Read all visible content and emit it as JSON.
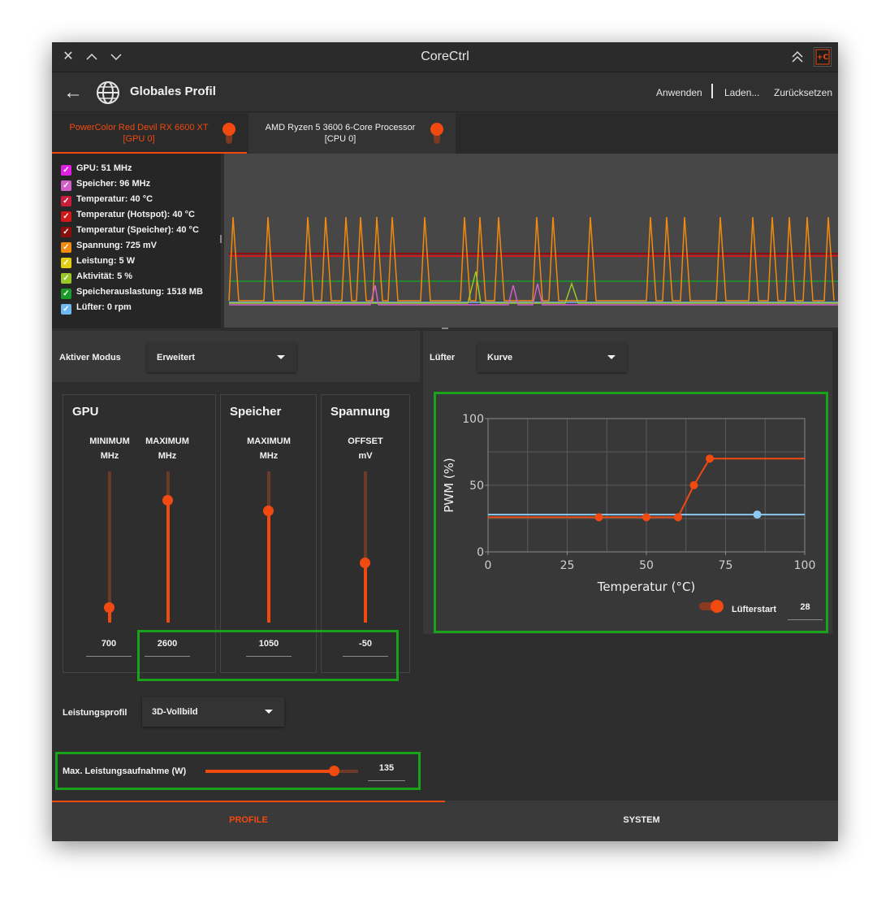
{
  "window": {
    "title": "CoreCtrl",
    "icon_text": "+C"
  },
  "header": {
    "title": "Globales Profil",
    "actions": {
      "apply": "Anwenden",
      "load": "Laden...",
      "reset": "Zurücksetzen"
    }
  },
  "device_tabs": [
    {
      "line1": "PowerColor Red Devil RX 6600 XT",
      "line2": "[GPU 0]",
      "active": true,
      "enabled": true
    },
    {
      "line1": "AMD Ryzen 5 3600 6-Core Processor",
      "line2": "[CPU 0]",
      "active": false,
      "enabled": true
    }
  ],
  "sensors": [
    {
      "label": "GPU: 51 MHz",
      "color": "#e020e0"
    },
    {
      "label": "Speicher: 96 MHz",
      "color": "#d060c8"
    },
    {
      "label": "Temperatur: 40 °C",
      "color": "#c81e3c"
    },
    {
      "label": "Temperatur (Hotspot): 40 °C",
      "color": "#d01818"
    },
    {
      "label": "Temperatur (Speicher): 40 °C",
      "color": "#8a0e0e"
    },
    {
      "label": "Spannung: 725 mV",
      "color": "#f08a10"
    },
    {
      "label": "Leistung: 5 W",
      "color": "#e0d010"
    },
    {
      "label": "Aktivität: 5 %",
      "color": "#98c828"
    },
    {
      "label": "Speicherauslastung: 1518 MB",
      "color": "#1a9a28"
    },
    {
      "label": "Lüfter: 0 rpm",
      "color": "#70b8f0"
    }
  ],
  "mode": {
    "label": "Aktiver Modus",
    "value": "Erweitert"
  },
  "gpu_group": {
    "title": "GPU",
    "min": {
      "head1": "MINIMUM",
      "head2": "MHz",
      "value": "700",
      "level": 0.1
    },
    "max": {
      "head1": "MAXIMUM",
      "head2": "MHz",
      "value": "2600",
      "level": 0.81
    }
  },
  "mem_group": {
    "title": "Speicher",
    "max": {
      "head1": "MAXIMUM",
      "head2": "MHz",
      "value": "1050",
      "level": 0.74
    }
  },
  "volt_group": {
    "title": "Spannung",
    "offset": {
      "head1": "OFFSET",
      "head2": "mV",
      "value": "-50",
      "level": 0.4
    }
  },
  "power_profile": {
    "label": "Leistungsprofil",
    "value": "3D-Vollbild"
  },
  "power_cap": {
    "label": "Max. Leistungsaufnahme (W)",
    "value": "135",
    "level": 0.84
  },
  "fan": {
    "label": "Lüfter",
    "mode": "Kurve",
    "start_label": "Lüfterstart",
    "start_value": "28",
    "start_enabled": true
  },
  "fan_curve": {
    "type": "line",
    "xlabel": "Temperatur (°C)",
    "ylabel": "PWM (%)",
    "xlim": [
      0,
      100
    ],
    "ylim": [
      0,
      100
    ],
    "xticks": [
      "0",
      "25",
      "50",
      "75",
      "100"
    ],
    "yticks": [
      "0",
      "50",
      "100"
    ],
    "curve_points": [
      [
        0,
        26
      ],
      [
        35,
        26
      ],
      [
        50,
        26
      ],
      [
        60,
        26
      ],
      [
        65,
        50
      ],
      [
        70,
        70
      ],
      [
        100,
        70
      ]
    ],
    "marker_points": [
      [
        35,
        26
      ],
      [
        50,
        26
      ],
      [
        60,
        26
      ],
      [
        65,
        50
      ],
      [
        70,
        70
      ]
    ],
    "current_line_y": 28,
    "current_marker_x": 85,
    "colors": {
      "curve": "#f04a10",
      "current": "#8cc8f0"
    }
  },
  "footer": {
    "tab_profiles": "PROFILE",
    "tab_system": "SYSTEM"
  },
  "colors": {
    "accent": "#f04a10",
    "highlight": "#1aa31a"
  }
}
